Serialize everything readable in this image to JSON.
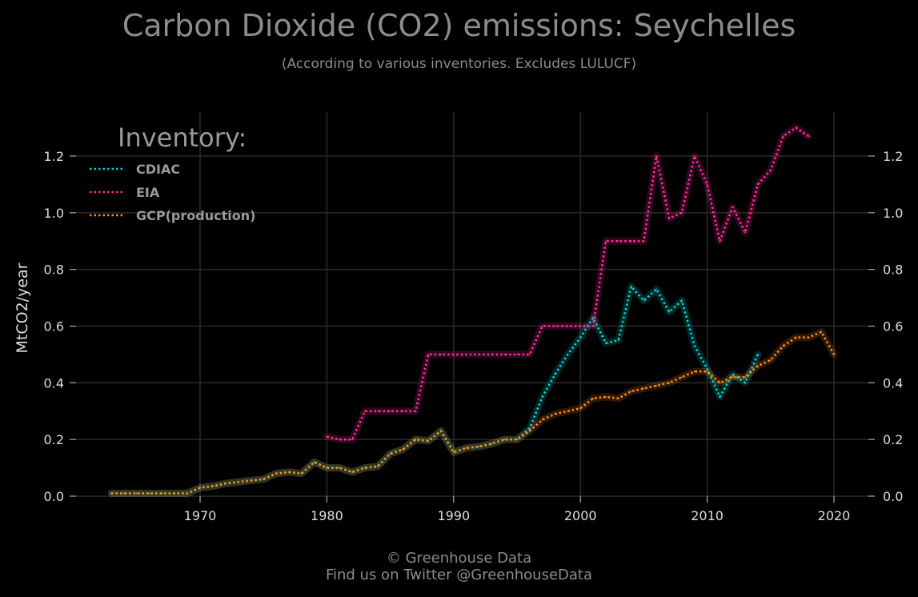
{
  "header": {
    "title": "Carbon Dioxide (CO2) emissions: Seychelles",
    "subtitle": "(According to various inventories. Excludes LULUCF)"
  },
  "footer": {
    "line1": "© Greenhouse Data",
    "line2": "Find us on Twitter @GreenhouseData"
  },
  "colors": {
    "CDIAC": "#00d0d0",
    "EIA": "#ff2d9b",
    "GCP(production)": "#ff8c1a",
    "grid": "#2a2a2a"
  },
  "chart_data": {
    "type": "line",
    "title": "Carbon Dioxide (CO2) emissions: Seychelles",
    "subtitle": "(According to various inventories. Excludes LULUCF)",
    "ylabel": "MtCO2/year",
    "xlabel": "",
    "xlim": [
      1963,
      2020
    ],
    "ylim": [
      0,
      1.3
    ],
    "xticks": [
      1970,
      1980,
      1990,
      2000,
      2010,
      2020
    ],
    "xtick_labels": [
      "1970",
      "1980",
      "1990",
      "2000",
      "2010",
      "2020"
    ],
    "yticks": [
      0,
      0.2,
      0.4,
      0.6,
      0.8,
      1.0,
      1.2
    ],
    "ytick_labels": [
      "0.0",
      "0.2",
      "0.4",
      "0.6",
      "0.8",
      "1.0",
      "1.2"
    ],
    "grid": true,
    "legend": {
      "title": "Inventory:",
      "placement": "top-left"
    },
    "series": [
      {
        "name": "CDIAC",
        "x": [
          1963,
          1964,
          1965,
          1966,
          1967,
          1968,
          1969,
          1970,
          1971,
          1972,
          1973,
          1974,
          1975,
          1976,
          1977,
          1978,
          1979,
          1980,
          1981,
          1982,
          1983,
          1984,
          1985,
          1986,
          1987,
          1988,
          1989,
          1990,
          1991,
          1992,
          1993,
          1994,
          1995,
          1996,
          1997,
          1998,
          1999,
          2000,
          2001,
          2002,
          2003,
          2004,
          2005,
          2006,
          2007,
          2008,
          2009,
          2010,
          2011,
          2012,
          2013,
          2014
        ],
        "values": [
          0.01,
          0.01,
          0.01,
          0.01,
          0.01,
          0.01,
          0.01,
          0.03,
          0.035,
          0.045,
          0.05,
          0.055,
          0.06,
          0.08,
          0.085,
          0.08,
          0.12,
          0.1,
          0.1,
          0.085,
          0.1,
          0.105,
          0.15,
          0.165,
          0.2,
          0.195,
          0.23,
          0.155,
          0.17,
          0.175,
          0.185,
          0.2,
          0.2,
          0.24,
          0.35,
          0.43,
          0.5,
          0.56,
          0.63,
          0.54,
          0.55,
          0.74,
          0.69,
          0.73,
          0.65,
          0.69,
          0.53,
          0.45,
          0.35,
          0.43,
          0.4,
          0.5
        ]
      },
      {
        "name": "EIA",
        "x": [
          1980,
          1981,
          1982,
          1983,
          1984,
          1985,
          1986,
          1987,
          1988,
          1989,
          1990,
          1991,
          1992,
          1993,
          1994,
          1995,
          1996,
          1997,
          1998,
          1999,
          2000,
          2001,
          2002,
          2003,
          2004,
          2005,
          2006,
          2007,
          2008,
          2009,
          2010,
          2011,
          2012,
          2013,
          2014,
          2015,
          2016,
          2017,
          2018
        ],
        "values": [
          0.21,
          0.2,
          0.2,
          0.3,
          0.3,
          0.3,
          0.3,
          0.3,
          0.5,
          0.5,
          0.5,
          0.5,
          0.5,
          0.5,
          0.5,
          0.5,
          0.5,
          0.6,
          0.6,
          0.6,
          0.6,
          0.6,
          0.9,
          0.9,
          0.9,
          0.9,
          1.2,
          0.98,
          1.0,
          1.2,
          1.1,
          0.9,
          1.02,
          0.93,
          1.1,
          1.15,
          1.27,
          1.3,
          1.27
        ]
      },
      {
        "name": "GCP(production)",
        "x": [
          1963,
          1964,
          1965,
          1966,
          1967,
          1968,
          1969,
          1970,
          1971,
          1972,
          1973,
          1974,
          1975,
          1976,
          1977,
          1978,
          1979,
          1980,
          1981,
          1982,
          1983,
          1984,
          1985,
          1986,
          1987,
          1988,
          1989,
          1990,
          1991,
          1992,
          1993,
          1994,
          1995,
          1996,
          1997,
          1998,
          1999,
          2000,
          2001,
          2002,
          2003,
          2004,
          2005,
          2006,
          2007,
          2008,
          2009,
          2010,
          2011,
          2012,
          2013,
          2014,
          2015,
          2016,
          2017,
          2018,
          2019,
          2020
        ],
        "values": [
          0.01,
          0.01,
          0.01,
          0.01,
          0.01,
          0.01,
          0.01,
          0.03,
          0.035,
          0.045,
          0.05,
          0.055,
          0.06,
          0.08,
          0.085,
          0.08,
          0.12,
          0.1,
          0.1,
          0.085,
          0.1,
          0.105,
          0.15,
          0.165,
          0.2,
          0.195,
          0.23,
          0.155,
          0.17,
          0.175,
          0.185,
          0.2,
          0.2,
          0.23,
          0.27,
          0.29,
          0.3,
          0.31,
          0.345,
          0.35,
          0.345,
          0.37,
          0.38,
          0.39,
          0.4,
          0.42,
          0.44,
          0.44,
          0.4,
          0.42,
          0.42,
          0.46,
          0.48,
          0.53,
          0.56,
          0.56,
          0.58,
          0.5
        ]
      }
    ]
  }
}
